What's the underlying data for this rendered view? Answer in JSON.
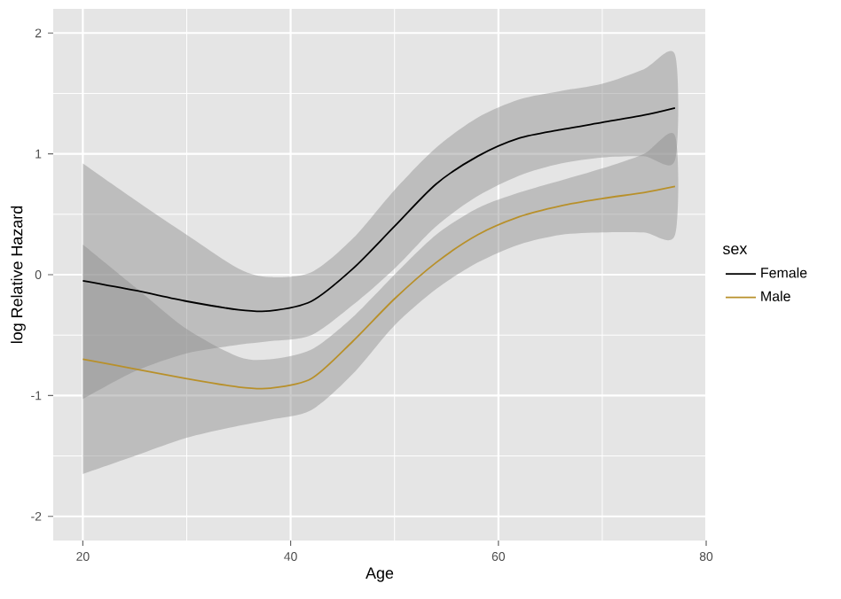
{
  "chart_data": {
    "type": "line",
    "xlabel": "Age",
    "ylabel": "log Relative Hazard",
    "legend_title": "sex",
    "x": [
      20,
      25,
      30,
      35,
      38,
      42,
      46,
      50,
      54,
      58,
      62,
      66,
      70,
      74,
      77
    ],
    "series": [
      {
        "name": "Female",
        "color": "#000000",
        "values": [
          -0.05,
          -0.13,
          -0.22,
          -0.29,
          -0.3,
          -0.22,
          0.05,
          0.4,
          0.75,
          0.98,
          1.13,
          1.2,
          1.26,
          1.32,
          1.38
        ],
        "upper": [
          0.92,
          0.62,
          0.33,
          0.05,
          -0.02,
          0.02,
          0.3,
          0.7,
          1.05,
          1.3,
          1.45,
          1.52,
          1.58,
          1.7,
          1.82
        ],
        "lower": [
          -1.03,
          -0.8,
          -0.65,
          -0.58,
          -0.55,
          -0.5,
          -0.25,
          0.05,
          0.4,
          0.65,
          0.82,
          0.92,
          0.97,
          0.98,
          0.95
        ]
      },
      {
        "name": "Male",
        "color": "#b8902a",
        "values": [
          -0.7,
          -0.78,
          -0.86,
          -0.93,
          -0.94,
          -0.86,
          -0.55,
          -0.2,
          0.1,
          0.33,
          0.48,
          0.57,
          0.63,
          0.68,
          0.73
        ],
        "upper": [
          0.25,
          -0.1,
          -0.45,
          -0.68,
          -0.7,
          -0.62,
          -0.35,
          0.0,
          0.33,
          0.55,
          0.68,
          0.78,
          0.88,
          1.0,
          1.15
        ],
        "lower": [
          -1.65,
          -1.5,
          -1.35,
          -1.25,
          -1.2,
          -1.12,
          -0.82,
          -0.42,
          -0.12,
          0.1,
          0.25,
          0.33,
          0.35,
          0.35,
          0.33
        ]
      }
    ],
    "xlim": [
      17.15,
      80
    ],
    "ylim": [
      -2.2,
      2.2
    ],
    "xticks": [
      20,
      40,
      60,
      80
    ],
    "yticks": [
      -2,
      -1,
      0,
      1,
      2
    ],
    "grid": true,
    "legend": "right",
    "line_style": "solid",
    "marker": "none"
  }
}
